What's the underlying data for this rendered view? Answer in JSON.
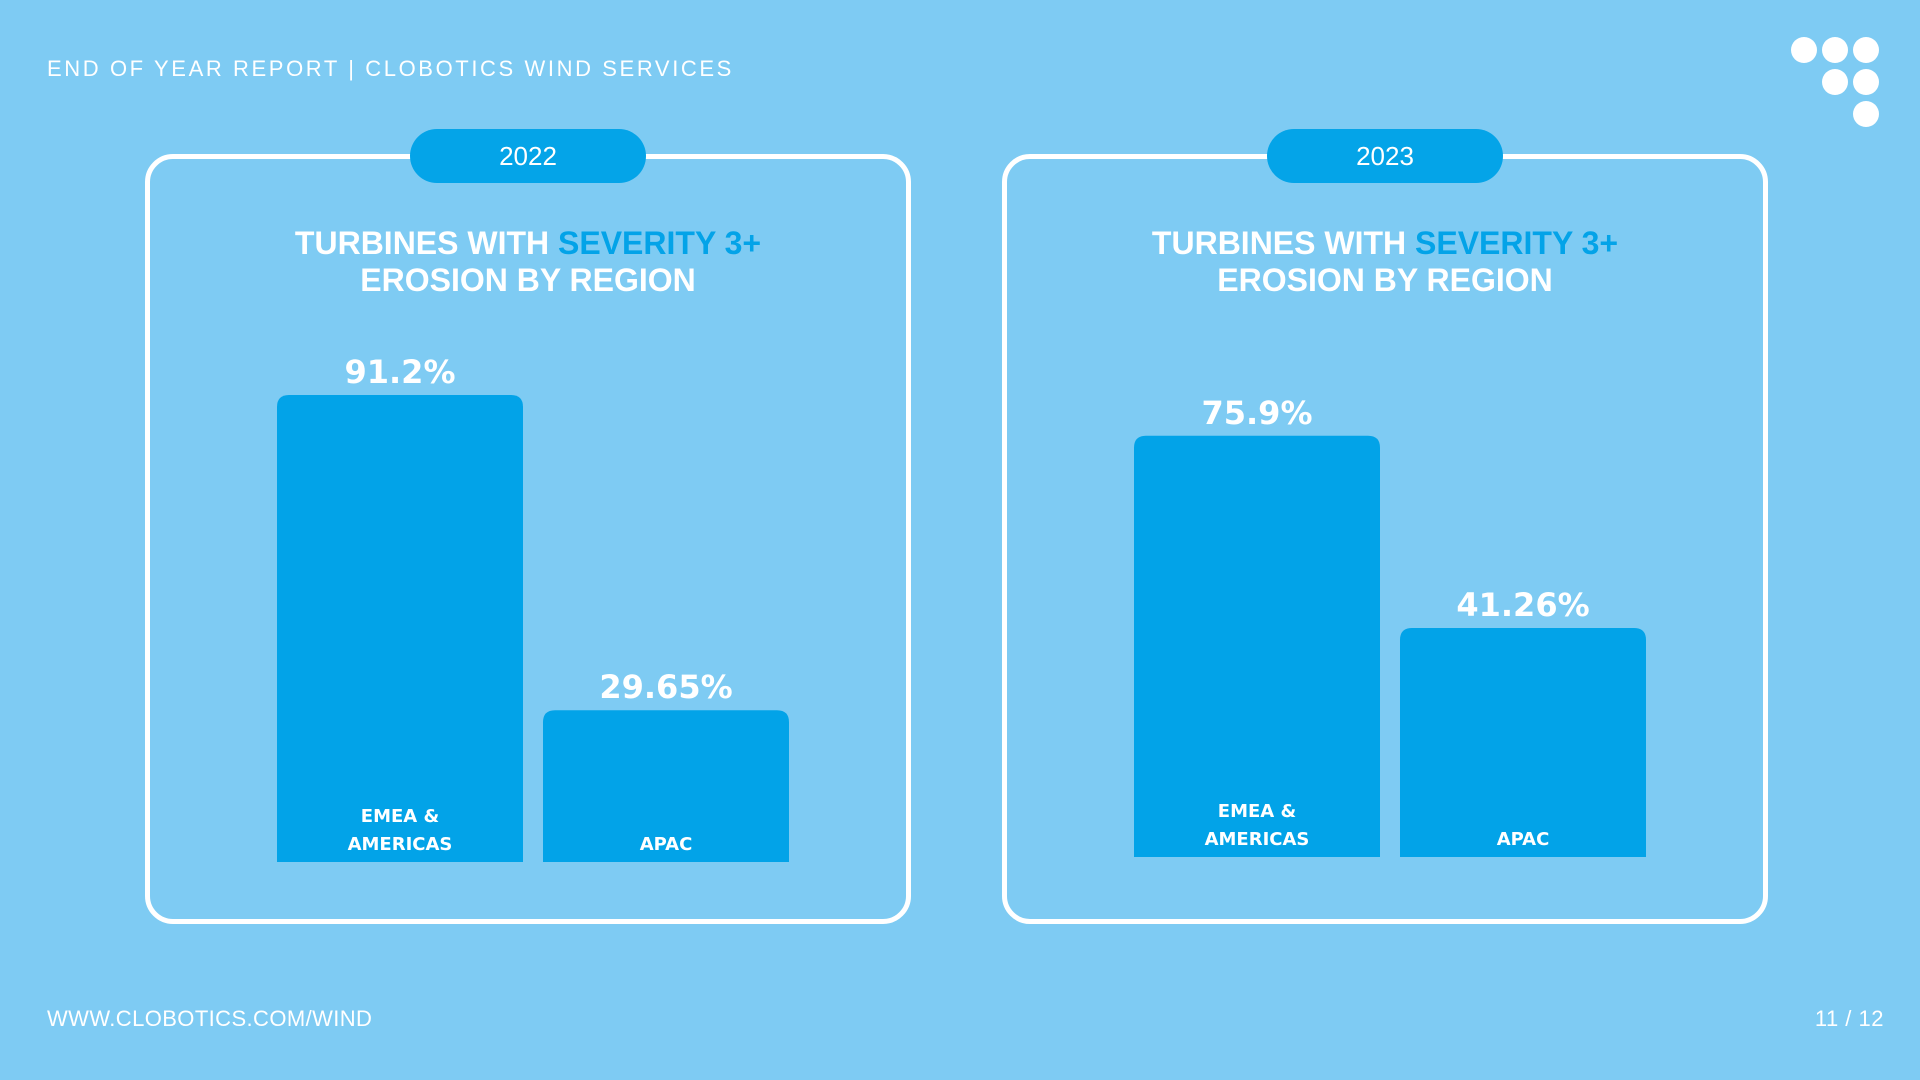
{
  "header": {
    "title": "END OF YEAR REPORT | CLOBOTICS WIND SERVICES"
  },
  "footer": {
    "url": "WWW.CLOBOTICS.COM/WIND",
    "page": "11 / 12"
  },
  "colors": {
    "background": "#7ecbf3",
    "bar": "#02a3e8",
    "accent": "#03a3e8",
    "text": "#ffffff"
  },
  "logo": {
    "icon": "dots-logo-icon"
  },
  "panels": [
    {
      "year": "2022",
      "title_pre": "TURBINES WITH ",
      "title_accent": "SEVERITY 3+",
      "title_line2": "EROSION BY REGION"
    },
    {
      "year": "2023",
      "title_pre": "TURBINES WITH ",
      "title_accent": "SEVERITY 3+",
      "title_line2": "EROSION BY REGION"
    }
  ],
  "chart_data": [
    {
      "type": "bar",
      "categories": [
        [
          "EMEA  &",
          "AMERICAS"
        ],
        [
          "APAC"
        ]
      ],
      "values": [
        91.2,
        29.65
      ],
      "value_labels": [
        "91.2%",
        "29.65%"
      ],
      "xlabel": "",
      "ylabel": "",
      "ylim": [
        0,
        100
      ],
      "grid": false
    },
    {
      "type": "bar",
      "categories": [
        [
          "EMEA  &",
          "AMERICAS"
        ],
        [
          "APAC"
        ]
      ],
      "values": [
        75.9,
        41.26
      ],
      "value_labels": [
        "75.9%",
        "41.26%"
      ],
      "xlabel": "",
      "ylabel": "",
      "ylim": [
        0,
        100
      ],
      "grid": false
    }
  ]
}
